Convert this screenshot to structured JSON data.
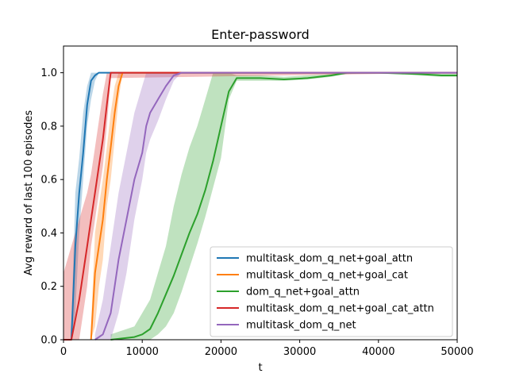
{
  "chart_data": {
    "type": "line",
    "title": "Enter-password",
    "xlabel": "t",
    "ylabel": "Avg reward of last 100 episodes",
    "xlim": [
      0,
      50000
    ],
    "ylim": [
      0,
      1.1
    ],
    "xticks": [
      0,
      10000,
      20000,
      30000,
      40000,
      50000
    ],
    "xtick_labels": [
      "0",
      "10000",
      "20000",
      "30000",
      "40000",
      "50000"
    ],
    "yticks": [
      0,
      0.2,
      0.4,
      0.6,
      0.8,
      1.0
    ],
    "ytick_labels": [
      "0.0",
      "0.2",
      "0.4",
      "0.6",
      "0.8",
      "1.0"
    ],
    "grid": false,
    "legend_position": "lower-right",
    "series": [
      {
        "name": "multitask_dom_q_net+goal_attn",
        "color": "#1f77b4",
        "x": [
          1000,
          1500,
          2000,
          2500,
          3000,
          3500,
          4000,
          4500,
          5000,
          50000
        ],
        "y": [
          0.0,
          0.35,
          0.55,
          0.7,
          0.88,
          0.97,
          0.99,
          1.0,
          1.0,
          1.0
        ],
        "band_low": [
          0.0,
          0.1,
          0.4,
          0.6,
          0.8,
          0.9,
          0.97,
          1.0,
          1.0,
          1.0
        ],
        "band_high": [
          0.05,
          0.55,
          0.68,
          0.85,
          0.95,
          1.0,
          1.0,
          1.0,
          1.0,
          1.0
        ]
      },
      {
        "name": "multitask_dom_q_net+goal_cat",
        "color": "#ff7f0e",
        "x": [
          3500,
          4000,
          4500,
          5000,
          5500,
          6000,
          6500,
          7000,
          7500,
          8000,
          50000
        ],
        "y": [
          0.0,
          0.25,
          0.35,
          0.45,
          0.6,
          0.72,
          0.85,
          0.95,
          1.0,
          1.0,
          1.0
        ],
        "band_low": [
          0.0,
          0.05,
          0.2,
          0.3,
          0.5,
          0.6,
          0.75,
          0.9,
          1.0,
          1.0,
          1.0
        ],
        "band_high": [
          0.05,
          0.4,
          0.5,
          0.6,
          0.72,
          0.85,
          0.95,
          1.0,
          1.0,
          1.0,
          1.0
        ]
      },
      {
        "name": "dom_q_net+goal_attn",
        "color": "#2ca02c",
        "x": [
          6000,
          9000,
          10000,
          11000,
          12000,
          13000,
          14000,
          15000,
          16000,
          17000,
          18000,
          19000,
          20000,
          21000,
          22000,
          25000,
          28000,
          31000,
          34000,
          36000,
          40000,
          45000,
          48000,
          50000
        ],
        "y": [
          0.0,
          0.01,
          0.02,
          0.04,
          0.1,
          0.17,
          0.24,
          0.32,
          0.4,
          0.47,
          0.56,
          0.67,
          0.8,
          0.93,
          0.98,
          0.98,
          0.975,
          0.98,
          0.99,
          1.0,
          1.0,
          0.995,
          0.99,
          0.99
        ],
        "band_low": [
          0.0,
          0.0,
          0.0,
          0.0,
          0.02,
          0.05,
          0.1,
          0.18,
          0.27,
          0.36,
          0.46,
          0.57,
          0.68,
          0.9,
          0.97,
          0.97,
          0.97,
          0.975,
          0.985,
          0.995,
          1.0,
          0.99,
          0.985,
          0.985
        ],
        "band_high": [
          0.02,
          0.05,
          0.1,
          0.15,
          0.25,
          0.35,
          0.5,
          0.62,
          0.72,
          0.8,
          0.9,
          1.0,
          1.0,
          1.0,
          0.99,
          0.99,
          0.985,
          0.99,
          0.995,
          1.0,
          1.0,
          1.0,
          0.995,
          0.995
        ]
      },
      {
        "name": "multitask_dom_q_net+goal_cat_attn",
        "color": "#d62728",
        "x": [
          0,
          1000,
          2000,
          3000,
          3500,
          4000,
          4500,
          5000,
          5500,
          6000,
          50000
        ],
        "y": [
          0.0,
          0.0,
          0.15,
          0.35,
          0.45,
          0.55,
          0.65,
          0.75,
          0.88,
          1.0,
          1.0
        ],
        "band_low": [
          0.0,
          0.0,
          0.0,
          0.2,
          0.35,
          0.45,
          0.55,
          0.65,
          0.8,
          0.98,
          1.0
        ],
        "band_high": [
          0.25,
          0.35,
          0.45,
          0.55,
          0.62,
          0.72,
          0.82,
          0.92,
          1.0,
          1.0,
          1.0
        ]
      },
      {
        "name": "multitask_dom_q_net",
        "color": "#9467bd",
        "x": [
          4000,
          5000,
          6000,
          7000,
          8000,
          9000,
          10000,
          10500,
          11000,
          12000,
          13000,
          14000,
          15000,
          50000
        ],
        "y": [
          0.0,
          0.02,
          0.1,
          0.3,
          0.45,
          0.6,
          0.7,
          0.8,
          0.85,
          0.9,
          0.95,
          0.99,
          1.0,
          1.0
        ],
        "band_low": [
          0.0,
          0.0,
          0.0,
          0.1,
          0.25,
          0.45,
          0.6,
          0.7,
          0.75,
          0.82,
          0.9,
          0.97,
          1.0,
          1.0
        ],
        "band_high": [
          0.02,
          0.15,
          0.35,
          0.55,
          0.7,
          0.85,
          0.95,
          1.0,
          1.0,
          1.0,
          1.0,
          1.0,
          1.0,
          1.0
        ]
      }
    ]
  }
}
